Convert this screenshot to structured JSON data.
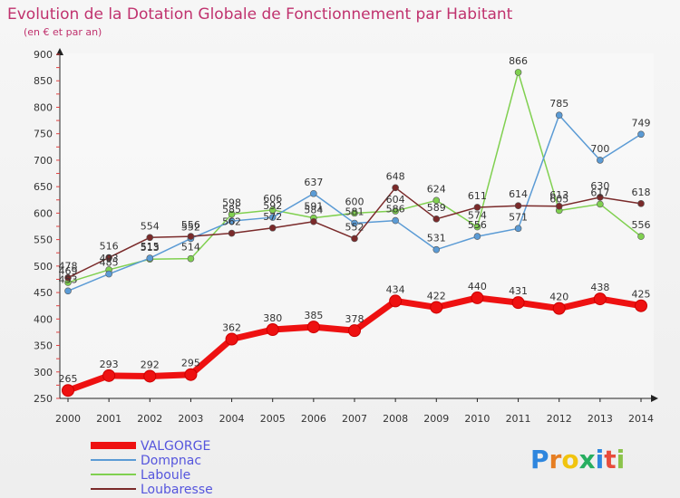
{
  "chart_data": {
    "type": "line",
    "title": "Evolution de la Dotation Globale de Fonctionnement par Habitant",
    "subtitle": "(en € et par an)",
    "xlabel": "",
    "ylabel": "",
    "ylim": [
      250,
      900
    ],
    "yticks": [
      250,
      300,
      350,
      400,
      450,
      500,
      550,
      600,
      650,
      700,
      750,
      800,
      850,
      900
    ],
    "x": [
      "2000",
      "2001",
      "2002",
      "2003",
      "2004",
      "2005",
      "2006",
      "2007",
      "2008",
      "2009",
      "2010",
      "2011",
      "2012",
      "2013",
      "2014"
    ],
    "grid": false,
    "legend_position": "bottom-left",
    "series": [
      {
        "name": "Laboule",
        "color": "#80d050",
        "values": [
          469,
          493,
          513,
          514,
          598,
          606,
          591,
          600,
          604,
          624,
          574,
          866,
          605,
          617,
          556
        ]
      },
      {
        "name": "Dompnac",
        "color": "#5b9bd5",
        "values": [
          453,
          485,
          515,
          552,
          585,
          592,
          637,
          581,
          586,
          531,
          556,
          571,
          785,
          700,
          749
        ]
      },
      {
        "name": "Loubaresse",
        "color": "#7a2a2a",
        "values": [
          478,
          516,
          554,
          556,
          562,
          572,
          584,
          552,
          648,
          589,
          611,
          614,
          613,
          630,
          618
        ]
      },
      {
        "name": "VALGORGE",
        "color": "#ee1111",
        "values": [
          265,
          293,
          292,
          295,
          362,
          380,
          385,
          378,
          434,
          422,
          440,
          431,
          420,
          438,
          425
        ]
      }
    ],
    "legend_order": [
      "VALGORGE",
      "Dompnac",
      "Laboule",
      "Loubaresse"
    ]
  },
  "logo": {
    "text": "Proxiti"
  }
}
